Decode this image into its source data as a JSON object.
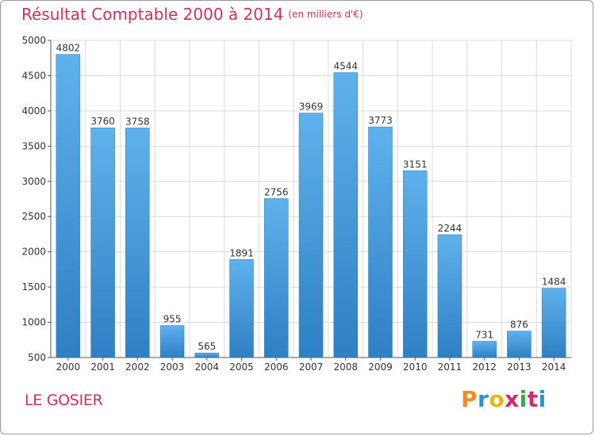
{
  "chart_data": {
    "type": "bar",
    "title": "Résultat Comptable 2000 à 2014",
    "subtitle": "(en milliers d'€)",
    "categories": [
      "2000",
      "2001",
      "2002",
      "2003",
      "2004",
      "2005",
      "2006",
      "2007",
      "2008",
      "2009",
      "2010",
      "2011",
      "2012",
      "2013",
      "2014"
    ],
    "values": [
      4802,
      3760,
      3758,
      955,
      565,
      1891,
      2756,
      3969,
      4544,
      3773,
      3151,
      2244,
      731,
      876,
      1484
    ],
    "ylim": [
      500,
      5000
    ],
    "yticks": [
      500,
      1000,
      1500,
      2000,
      2500,
      3000,
      3500,
      4000,
      4500,
      5000
    ],
    "xlabel": "",
    "ylabel": "",
    "grid": true,
    "bar_color": "#4a9fdf"
  },
  "footer": {
    "commune": "LE GOSIER",
    "logo_letters": [
      "P",
      "r",
      "o",
      "x",
      "i",
      "t",
      "i"
    ],
    "logo_colors": [
      "#f28c1e",
      "#2e8fd6",
      "#e8b90a",
      "#d12a6e",
      "#3aa84a",
      "#d12a6e",
      "#2e8fd6"
    ]
  }
}
